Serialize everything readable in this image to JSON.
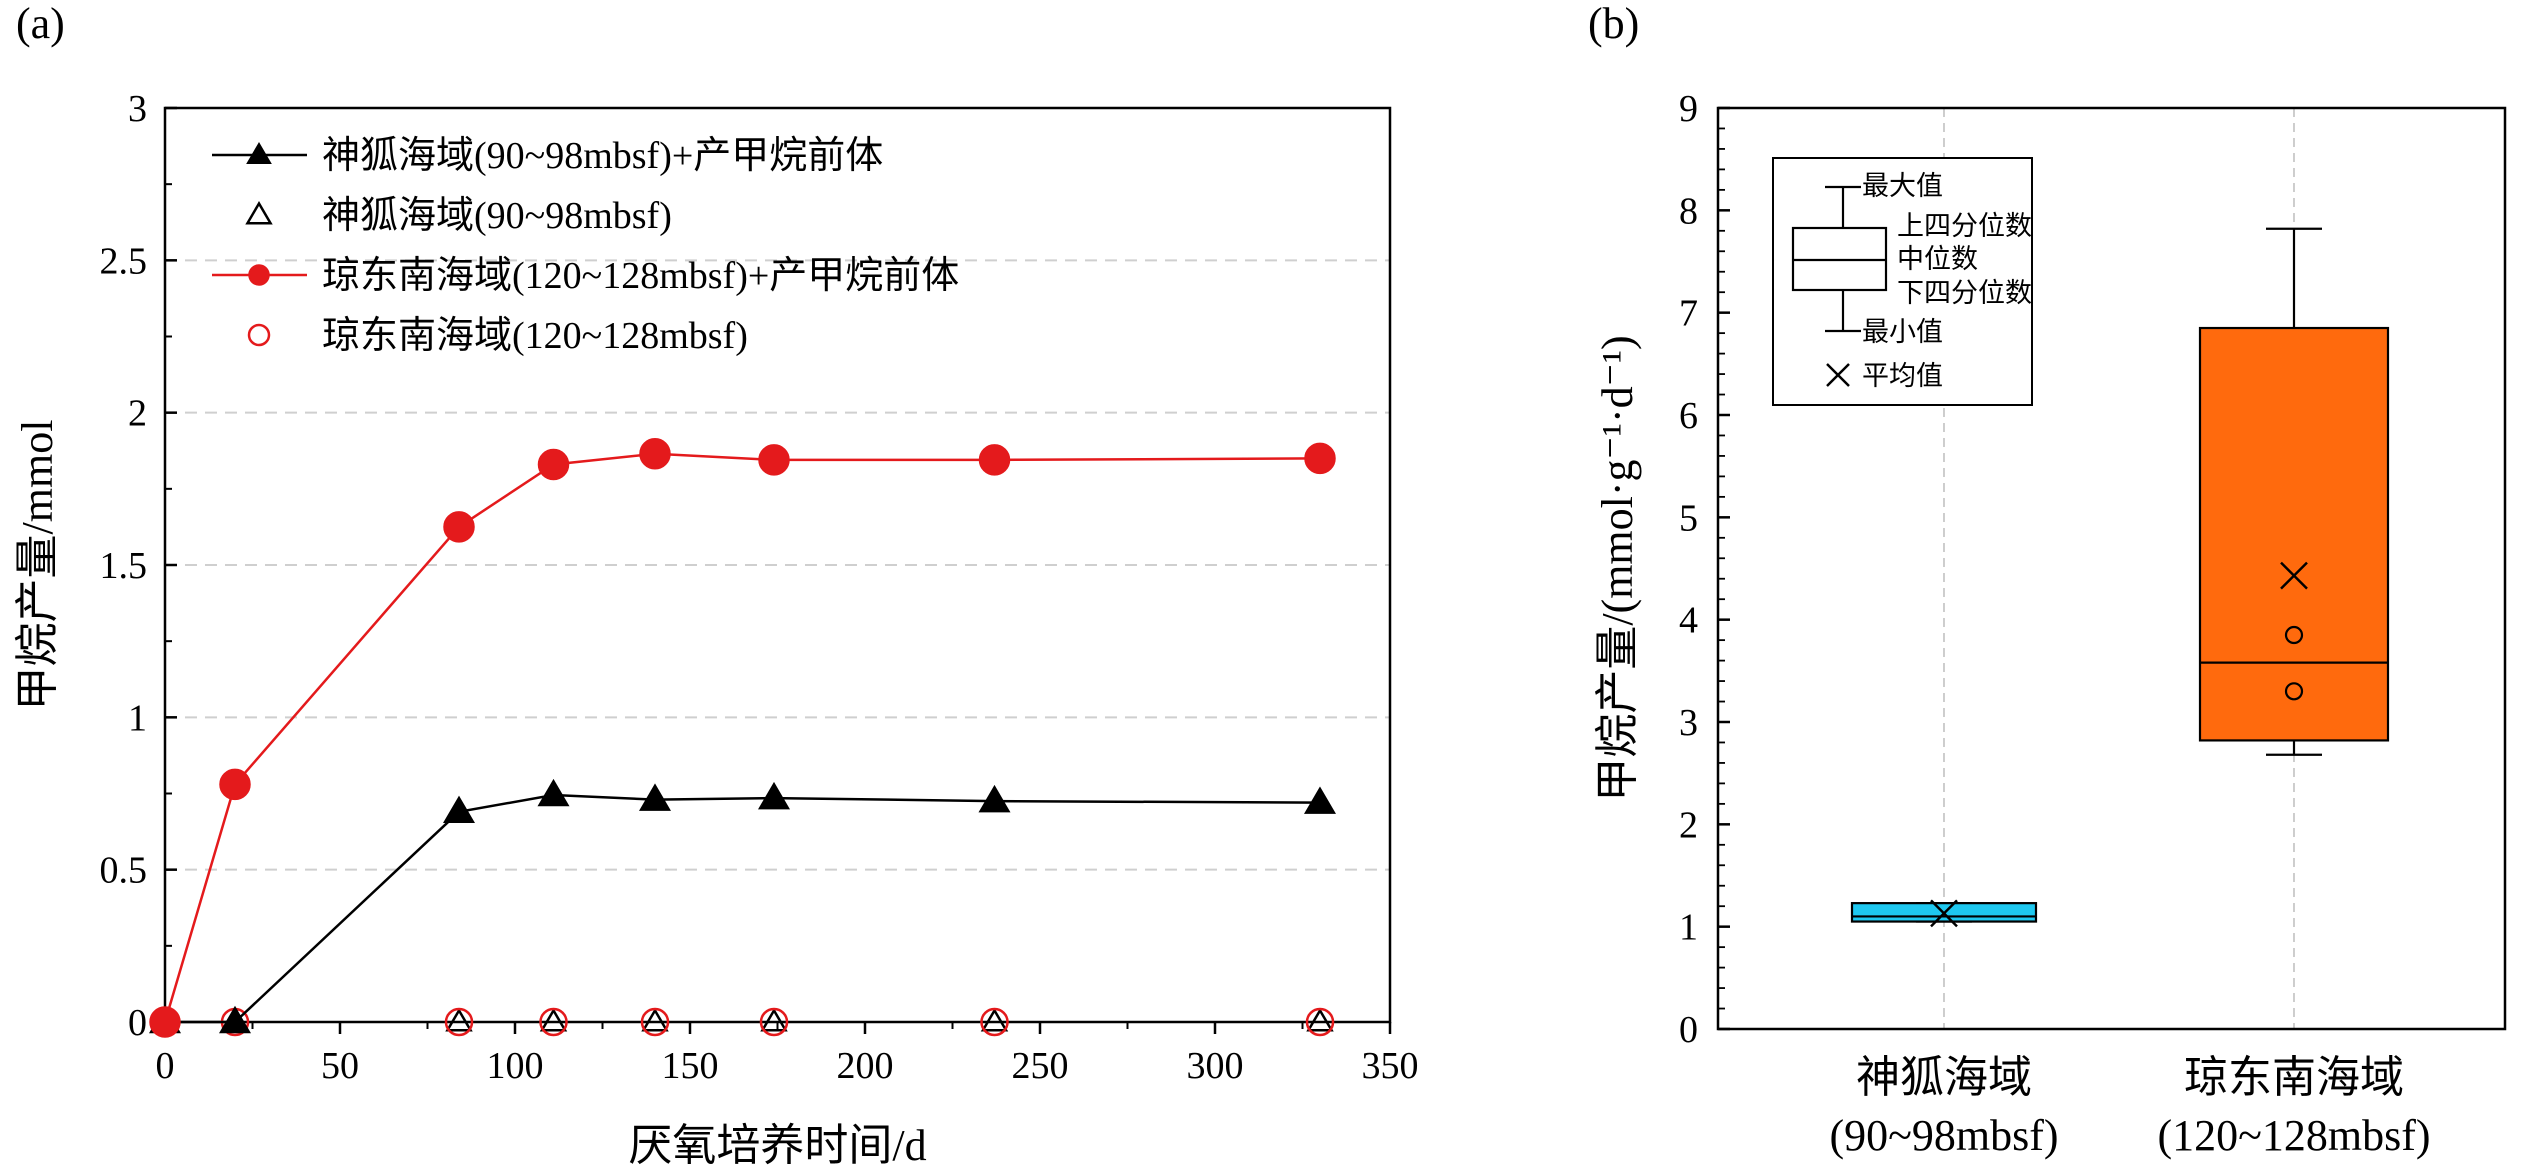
{
  "chart_data": [
    {
      "panel_label": "(a)",
      "type": "line",
      "xlabel": "厌氧培养时间/d",
      "ylabel": "甲烷产量/mmol",
      "xlim": [
        0,
        350
      ],
      "ylim": [
        0,
        3
      ],
      "x_ticks": [
        "0",
        "50",
        "100",
        "150",
        "200",
        "250",
        "300",
        "350"
      ],
      "y_ticks": [
        "0",
        "0.5",
        "1",
        "1.5",
        "2",
        "2.5",
        "3"
      ],
      "grid": "horizontal dashed",
      "legend_position": "top-left",
      "x": [
        0,
        20,
        84,
        111,
        140,
        174,
        237,
        330
      ],
      "series": [
        {
          "name": "神狐海域(90~98mbsf)+产甲烷前体",
          "marker": "filled-triangle",
          "color": "#000000",
          "line": true,
          "values": [
            0,
            0,
            0.69,
            0.745,
            0.73,
            0.735,
            0.725,
            0.72
          ]
        },
        {
          "name": "神狐海域(90~98mbsf)",
          "marker": "open-triangle",
          "color": "#000000",
          "line": false,
          "values": [
            0,
            0,
            0,
            0,
            0,
            0,
            0,
            0
          ]
        },
        {
          "name": "琼东南海域(120~128mbsf)+产甲烷前体",
          "marker": "filled-circle",
          "color": "#e41a1c",
          "line": true,
          "values": [
            0,
            0.78,
            1.625,
            1.83,
            1.865,
            1.845,
            1.845,
            1.85
          ]
        },
        {
          "name": "琼东南海域(120~128mbsf)",
          "marker": "open-circle",
          "color": "#e41a1c",
          "line": false,
          "values": [
            0,
            0,
            0,
            0,
            0,
            0,
            0,
            0
          ]
        }
      ]
    },
    {
      "panel_label": "(b)",
      "type": "box",
      "ylabel": "甲烷产量/(mmol·g⁻¹·d⁻¹)",
      "ylim": [
        0,
        9
      ],
      "y_ticks": [
        "0",
        "1",
        "2",
        "3",
        "4",
        "5",
        "6",
        "7",
        "8",
        "9"
      ],
      "grid": "vertical dashed at categories",
      "categories": [
        {
          "line1": "神狐海域",
          "line2": "(90~98mbsf)",
          "color": "#1ec8f0",
          "min": 1.05,
          "q1": 1.05,
          "median": 1.1,
          "q3": 1.23,
          "max": 1.23,
          "mean": 1.13,
          "outliers": []
        },
        {
          "line1": "琼东南海域",
          "line2": "(120~128mbsf)",
          "color": "#ff6a0d",
          "min": 2.68,
          "q1": 2.82,
          "median": 3.58,
          "q3": 6.85,
          "max": 7.82,
          "mean": 4.43,
          "outliers": [
            3.85,
            3.3
          ]
        }
      ],
      "key": {
        "max": "最大值",
        "q3": "上四分位数",
        "median": "中位数",
        "q1": "下四分位数",
        "min": "最小值",
        "mean": "平均值"
      }
    }
  ]
}
